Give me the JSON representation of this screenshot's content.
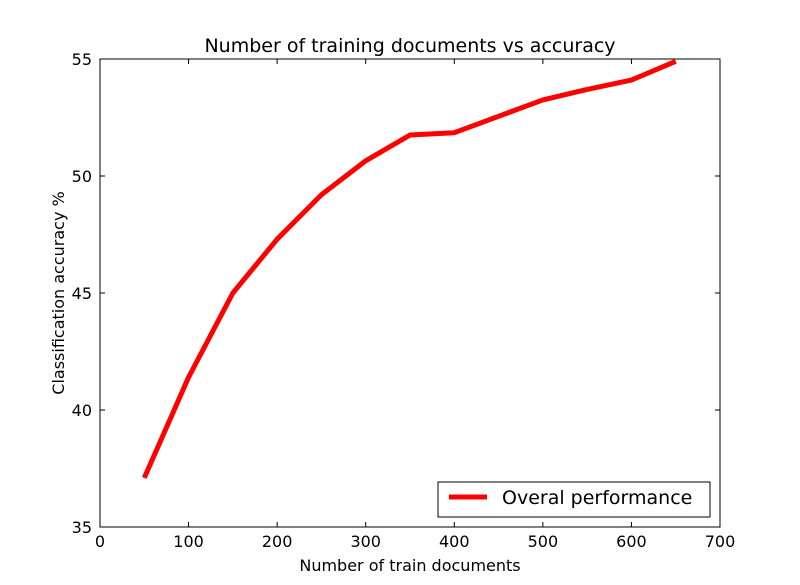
{
  "chart_data": {
    "type": "line",
    "title": "Number of training documents vs accuracy",
    "xlabel": "Number of train documents",
    "ylabel": "Classification accuracy %",
    "xlim": [
      0,
      700
    ],
    "ylim": [
      35,
      55
    ],
    "xticks": [
      0,
      100,
      200,
      300,
      400,
      500,
      600,
      700
    ],
    "yticks": [
      35,
      40,
      45,
      50,
      55
    ],
    "xtick_labels": [
      "0",
      "100",
      "200",
      "300",
      "400",
      "500",
      "600",
      "700"
    ],
    "ytick_labels": [
      "35",
      "40",
      "45",
      "50",
      "55"
    ],
    "grid": false,
    "legend_position": "lower-right",
    "series": [
      {
        "name": "Overal performance",
        "color": "#ff0000",
        "x": [
          50,
          100,
          150,
          200,
          250,
          300,
          350,
          400,
          450,
          500,
          550,
          600,
          650
        ],
        "y": [
          37.1,
          41.4,
          45.0,
          47.3,
          49.2,
          50.65,
          51.75,
          51.85,
          52.55,
          53.25,
          53.7,
          54.1,
          54.9
        ]
      }
    ]
  }
}
